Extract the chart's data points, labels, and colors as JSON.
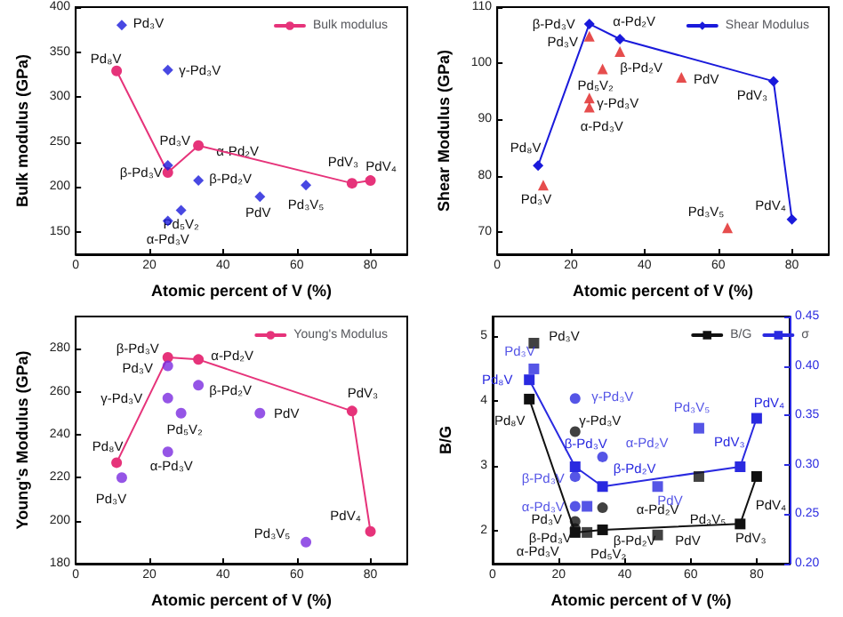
{
  "chart_data": [
    {
      "type": "scatter",
      "xlabel": "Atomic percent of V (%)",
      "ylabel": "Bulk modulus (GPa)",
      "xlim": [
        0,
        90
      ],
      "xticks": [
        0,
        20,
        40,
        60,
        80
      ],
      "ylim": [
        125,
        400
      ],
      "yticks": [
        150,
        200,
        250,
        300,
        350,
        400
      ],
      "grid": false,
      "legend": "top right",
      "series": [
        {
          "name": "Bulk modulus",
          "type": "line",
          "marker": "circle",
          "line_style": "solid",
          "color": "#e6337a",
          "x": [
            11.1,
            25,
            33.3,
            75,
            80
          ],
          "values": [
            329,
            216,
            246,
            204,
            207
          ]
        },
        {
          "marker": "diamond",
          "color": "#1a1adb",
          "x": [
            12.5,
            25,
            25,
            25,
            28.6,
            33.3,
            50,
            62.5
          ],
          "values": [
            380,
            330,
            224,
            162,
            174,
            207,
            189,
            202
          ]
        }
      ],
      "annotations": [
        {
          "text": "Pd₃V",
          "x": 12.5,
          "y": 380
        },
        {
          "text": "Pd₈V",
          "x": 11.1,
          "y": 329
        },
        {
          "text": "γ-Pd₃V",
          "x": 25,
          "y": 330
        },
        {
          "text": "Pd₃V",
          "x": 25,
          "y": 224
        },
        {
          "text": "α-Pd₂V",
          "x": 33.3,
          "y": 246
        },
        {
          "text": "β-Pd₃V",
          "x": 25,
          "y": 216
        },
        {
          "text": "β-Pd₂V",
          "x": 33.3,
          "y": 207
        },
        {
          "text": "Pd₅V₂",
          "x": 28.6,
          "y": 174
        },
        {
          "text": "PdV",
          "x": 50,
          "y": 189
        },
        {
          "text": "Pd₃V₅",
          "x": 62.5,
          "y": 202
        },
        {
          "text": "α-Pd₃V",
          "x": 25,
          "y": 162
        },
        {
          "text": "PdV₃",
          "x": 75,
          "y": 204
        },
        {
          "text": "PdV₄",
          "x": 80,
          "y": 207
        }
      ]
    },
    {
      "type": "scatter",
      "xlabel": "Atomic percent of V (%)",
      "ylabel": "Shear Modulus (GPa)",
      "xlim": [
        0,
        90
      ],
      "xticks": [
        0,
        20,
        40,
        60,
        80
      ],
      "ylim": [
        66,
        110
      ],
      "yticks": [
        70,
        80,
        90,
        100,
        110
      ],
      "grid": false,
      "legend": "top right",
      "series": [
        {
          "name": "Shear Modulus",
          "type": "line",
          "marker": "diamond",
          "line_style": "solid",
          "color": "#1a1adb",
          "x": [
            11.1,
            25,
            33.3,
            75,
            80
          ],
          "values": [
            81.8,
            107,
            104.3,
            96.8,
            72.2
          ]
        },
        {
          "marker": "triangle",
          "color": "#e02020",
          "x": [
            12.5,
            25,
            33.3,
            28.6,
            25,
            25,
            50,
            62.5
          ],
          "values": [
            78.3,
            104.8,
            102.1,
            99,
            93.8,
            92.2,
            97.5,
            70.7
          ]
        }
      ],
      "annotations": [
        {
          "text": "β-Pd₃V",
          "x": 25,
          "y": 107
        },
        {
          "text": "α-Pd₂V",
          "x": 33.3,
          "y": 104.3
        },
        {
          "text": "Pd₃V",
          "x": 25,
          "y": 104.8
        },
        {
          "text": "β-Pd₂V",
          "x": 33.3,
          "y": 102.1
        },
        {
          "text": "Pd₅V₂",
          "x": 28.6,
          "y": 99
        },
        {
          "text": "PdV",
          "x": 50,
          "y": 97.5
        },
        {
          "text": "γ-Pd₃V",
          "x": 25,
          "y": 93.8
        },
        {
          "text": "α-Pd₃V",
          "x": 25,
          "y": 92.2
        },
        {
          "text": "Pd₈V",
          "x": 11.1,
          "y": 81.8
        },
        {
          "text": "Pd₃V",
          "x": 12.5,
          "y": 78.3
        },
        {
          "text": "PdV₃",
          "x": 75,
          "y": 96.8
        },
        {
          "text": "Pd₃V₅",
          "x": 62.5,
          "y": 70.7
        },
        {
          "text": "PdV₄",
          "x": 80,
          "y": 72.2
        }
      ]
    },
    {
      "type": "scatter",
      "xlabel": "Atomic percent of V (%)",
      "ylabel": "Young's Modulus (GPa)",
      "xlim": [
        0,
        90
      ],
      "xticks": [
        0,
        20,
        40,
        60,
        80
      ],
      "ylim": [
        180,
        295
      ],
      "yticks": [
        180,
        200,
        220,
        240,
        260,
        280
      ],
      "grid": false,
      "legend": "top right",
      "series": [
        {
          "name": "Young's Modulus",
          "type": "line",
          "marker": "circle",
          "line_style": "solid",
          "color": "#e6337a",
          "x": [
            11.1,
            25,
            33.3,
            75,
            80
          ],
          "values": [
            227,
            276,
            275,
            251,
            195
          ]
        },
        {
          "marker": "circle",
          "color": "#7b2be0",
          "x": [
            12.5,
            25,
            25,
            28.6,
            25,
            33.3,
            50,
            62.5
          ],
          "values": [
            220,
            272,
            257,
            250,
            232,
            263,
            250,
            190
          ]
        }
      ],
      "annotations": [
        {
          "text": "β-Pd₃V",
          "x": 25,
          "y": 276
        },
        {
          "text": "α-Pd₂V",
          "x": 33.3,
          "y": 275
        },
        {
          "text": "Pd₃V",
          "x": 25,
          "y": 272
        },
        {
          "text": "γ-Pd₃V",
          "x": 25,
          "y": 257
        },
        {
          "text": "β-Pd₂V",
          "x": 33.3,
          "y": 263
        },
        {
          "text": "PdV",
          "x": 50,
          "y": 250
        },
        {
          "text": "Pd₅V₂",
          "x": 28.6,
          "y": 250
        },
        {
          "text": "Pd₈V",
          "x": 11.1,
          "y": 227
        },
        {
          "text": "α-Pd₃V",
          "x": 25,
          "y": 232
        },
        {
          "text": "Pd₃V",
          "x": 12.5,
          "y": 220
        },
        {
          "text": "PdV₃",
          "x": 75,
          "y": 251
        },
        {
          "text": "PdV₄",
          "x": 80,
          "y": 195
        },
        {
          "text": "Pd₃V₅",
          "x": 62.5,
          "y": 190
        }
      ]
    },
    {
      "type": "scatter",
      "xlabel": "Atomic percent of V (%)",
      "ylabel": "B/G",
      "xlim": [
        0,
        90
      ],
      "xticks": [
        0,
        20,
        40,
        60,
        80
      ],
      "ylim": [
        1.5,
        5.3
      ],
      "yticks": [
        2,
        3,
        4,
        5
      ],
      "y2lim": [
        0.2,
        0.45
      ],
      "y2ticks": [
        {
          "value": 0.2,
          "label": "0.20"
        },
        0.25,
        {
          "value": 0.3,
          "label": "0.30"
        },
        0.35,
        {
          "value": 0.4,
          "label": "0.40"
        },
        0.45
      ],
      "grid": false,
      "legend": "top right",
      "series": [
        {
          "name": "B/G",
          "type": "line",
          "marker": "square",
          "line_style": "solid",
          "color": "#111111",
          "x": [
            11.1,
            25,
            33.3,
            75,
            80
          ],
          "values": [
            4.03,
            1.98,
            2.02,
            2.11,
            2.84
          ]
        },
        {
          "marker": "square",
          "color": "#111111",
          "x": [
            12.5,
            28.6,
            50,
            62.5
          ],
          "values": [
            4.89,
            1.98,
            1.94,
            2.84
          ]
        },
        {
          "marker": "circle",
          "color": "#111111",
          "x": [
            25,
            25,
            25,
            33.3
          ],
          "values": [
            3.53,
            2.15,
            2.04,
            2.36
          ]
        },
        {
          "name": "σ",
          "type": "line",
          "axis": "y2",
          "marker": "square",
          "line_style": "solid",
          "color": "#2a2ae0",
          "x": [
            11.1,
            25,
            33.3,
            75,
            80
          ],
          "values": [
            0.386,
            0.298,
            0.278,
            0.298,
            0.347
          ],
          "value_labels": [
            "Pd₈V",
            "β-Pd₃V",
            "β-Pd₂V",
            "PdV₃",
            "PdV₄"
          ]
        },
        {
          "axis": "y2",
          "marker": "square",
          "color": "#2a2ae0",
          "x": [
            12.5,
            28.6,
            50,
            62.5
          ],
          "values": [
            0.397,
            0.258,
            0.278,
            0.337
          ],
          "value_labels": [
            "Pd₃V",
            null,
            "PdV",
            "Pd₃V₅"
          ]
        },
        {
          "axis": "y2",
          "marker": "circle",
          "color": "#2a2ae0",
          "x": [
            25,
            25,
            25,
            33.3
          ],
          "values": [
            0.367,
            0.288,
            0.258,
            0.308
          ],
          "value_labels": [
            "γ-Pd₃V",
            "β-Pd₃V",
            "α-Pd₃V",
            "α-Pd₂V"
          ]
        }
      ],
      "annotations": [
        {
          "text": "Pd₃V",
          "x": 12.5,
          "y": 4.89
        },
        {
          "text": "Pd₈V",
          "x": 11.1,
          "y": 4.03
        },
        {
          "text": "γ-Pd₃V",
          "x": 25,
          "y": 3.53
        },
        {
          "text": "α-Pd₂V",
          "x": 33.3,
          "y": 2.36
        },
        {
          "text": "Pd₃V₅",
          "x": 62.5,
          "y": 2.84
        },
        {
          "text": "PdV₄",
          "x": 80,
          "y": 2.84
        },
        {
          "text": "Pd₃V",
          "x": 25,
          "y": 2.15
        },
        {
          "text": "β-Pd₃V",
          "x": 25,
          "y": 1.98
        },
        {
          "text": "α-Pd₃V",
          "x": 25,
          "y": 2.04
        },
        {
          "text": "β-Pd₂V",
          "x": 33.3,
          "y": 2.02
        },
        {
          "text": "PdV",
          "x": 50,
          "y": 1.94
        },
        {
          "text": "Pd₅V₂",
          "x": 28.6,
          "y": 1.98
        },
        {
          "text": "PdV₃",
          "x": 75,
          "y": 2.11
        }
      ]
    }
  ]
}
